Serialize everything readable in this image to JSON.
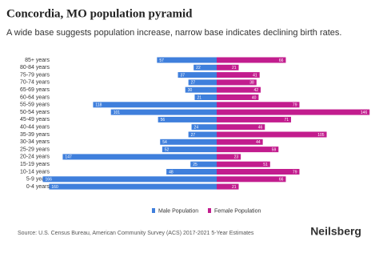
{
  "chart_data": {
    "type": "population-pyramid",
    "title": "Concordia, MO population pyramid",
    "subtitle": "A wide base suggests population increase, narrow base indicates declining birth rates.",
    "categories": [
      "85+ years",
      "80-84 years",
      "75-79 years",
      "70-74 years",
      "65-69 years",
      "60-64 years",
      "55-59 years",
      "50-54 years",
      "45-49 years",
      "40-44 years",
      "35-39 years",
      "30-34 years",
      "25-29 years",
      "20-24 years",
      "15-19 years",
      "10-14 years",
      "5-9 years",
      "0-4 years"
    ],
    "series": [
      {
        "name": "Male Population",
        "color": "#3f7fdc",
        "values": [
          57,
          22,
          37,
          27,
          30,
          21,
          118,
          101,
          56,
          24,
          27,
          54,
          52,
          147,
          25,
          48,
          166,
          160
        ]
      },
      {
        "name": "Female Population",
        "color": "#c21d8e",
        "values": [
          66,
          21,
          41,
          38,
          42,
          40,
          79,
          146,
          71,
          46,
          105,
          44,
          59,
          23,
          51,
          79,
          66,
          21
        ]
      }
    ],
    "source": "Source: U.S. Census Bureau, American Community Survey (ACS) 2017-2021 5-Year Estimates",
    "brand": "Neilsberg"
  }
}
